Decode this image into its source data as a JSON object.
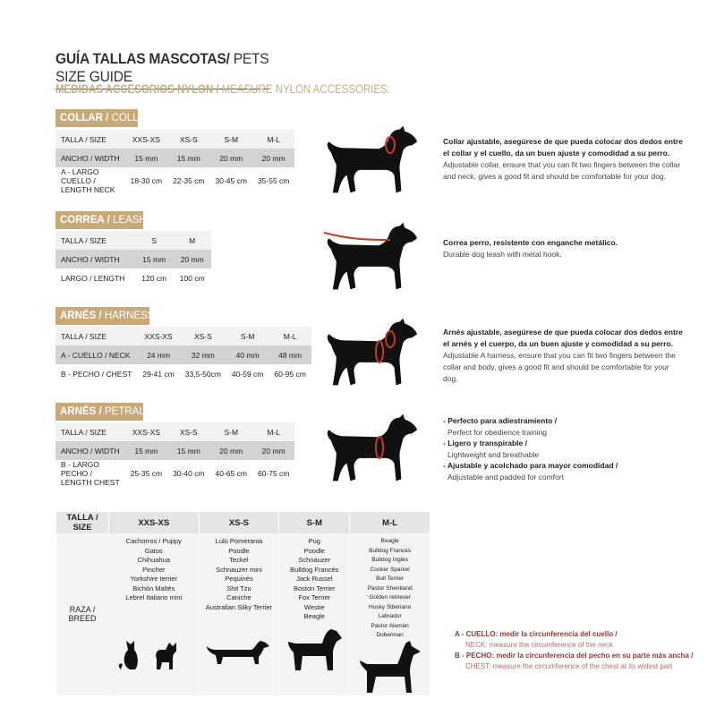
{
  "title": {
    "bold": "GUÍA TALLAS MASCOTAS/",
    "light": " PETS SIZE GUIDE"
  },
  "subtitle": {
    "bold": "MEDIDAS ACCESORIOS NYLON /",
    "light": " MEASURE NYLON ACCESSORIES:"
  },
  "collar": {
    "tag_bold": "COLLAR /",
    "tag_light": " COLLAR",
    "rows": [
      [
        "TALLA / SIZE",
        "XXS-XS",
        "XS-S",
        "S-M",
        "M-L"
      ],
      [
        "ANCHO / WIDTH",
        "15 mm",
        "15 mm",
        "20 mm",
        "20 mm"
      ],
      [
        "A - LARGO CUELLO / LENGTH NECK",
        "18-30 cm",
        "22-35 cm",
        "30-45 cm",
        "35-55 cm"
      ]
    ],
    "desc_es": "Collar ajustable, asegúrese de que pueda colocar dos dedos entre el collar y el cuello, da un buen ajuste y comodidad a su perro.",
    "desc_en": "Adjustable collar, ensure that you can fit two fingers between the collar and neck, gives a good fit and should be comfortable for your dog."
  },
  "leash": {
    "tag_bold": "CORREA /",
    "tag_light": " LEASH",
    "rows": [
      [
        "TALLA / SIZE",
        "S",
        "M"
      ],
      [
        "ANCHO / WIDTH",
        "15 mm",
        "20 mm"
      ],
      [
        "LARGO / LENGTH",
        "120 cm",
        "100 cm"
      ]
    ],
    "desc_es": "Correa perro, resistente con enganche metálico.",
    "desc_en": "Durable dog leash with metal hook."
  },
  "harness": {
    "tag_bold": "ARNÉS /",
    "tag_light": " HARNESS",
    "rows": [
      [
        "TALLA / SIZE",
        "XXS-XS",
        "XS-S",
        "S-M",
        "M-L"
      ],
      [
        "A - CUELLO / NECK",
        "24 mm",
        "32 mm",
        "40 mm",
        "48 mm"
      ],
      [
        "B - PECHO / CHEST",
        "29-41 cm",
        "33,5-50cm",
        "40-59 cm",
        "60-95 cm"
      ]
    ],
    "desc_es": "Arnés ajustable, asegúrese de que pueda colocar dos dedos entre el arnés y el cuerpo, da un buen ajuste y comodidad a su perro.",
    "desc_en": "Adjustable A harness, ensure that you can fit two fingers between the collar and body, gives a good fit and should be comfortable for your dog."
  },
  "petral": {
    "tag_bold": "ARNÉS /",
    "tag_light": " PETRAL",
    "rows": [
      [
        "TALLA / SIZE",
        "XXS-XS",
        "XS-S",
        "S-M",
        "M-L"
      ],
      [
        "ANCHO / WIDTH",
        "15 mm",
        "15 mm",
        "20 mm",
        "20 mm"
      ],
      [
        "B - LARGO PECHO / LENGTH CHEST",
        "25-35 cm",
        "30-40 cm",
        "40-65 cm",
        "60-75 cm"
      ]
    ],
    "bullets": [
      {
        "es": "- Perfecto para adiestramiento /",
        "en": "Perfect for obedience training"
      },
      {
        "es": "- Ligero y transpirable /",
        "en": "Lightweight and breathable"
      },
      {
        "es": "- Ajustable y acolchado para mayor comodidad /",
        "en": "Adjustable and padded for comfort"
      }
    ]
  },
  "breeds": {
    "header": [
      "TALLA /  SIZE",
      "XXS-XS",
      "XS-S",
      "S-M",
      "M-L"
    ],
    "row_label": "RAZA / BREED",
    "columns": [
      [
        "Cachorros / Puppy",
        "Gatos",
        "Chihuahua",
        "Pincher",
        "Yorkshire terrier",
        "Bichón Maltés",
        "Lebrel Italiano mini"
      ],
      [
        "Lulú Pomerania",
        "Poodle",
        "Teckel",
        "Schnauzer mini",
        "Pequinés",
        "Shit Tzu",
        "Caniche",
        "Australian Silky Terrier"
      ],
      [
        "Pug",
        "Poodle",
        "Schnauzer",
        "Bulldog Francés",
        "Jack Russel",
        "Boston Terrier",
        "Fox Terrier",
        "Westie",
        "Beagle"
      ],
      [
        "Beagle",
        "Bulldog Francés",
        "Bulldog Inglés",
        "Cocker Spaniel",
        "Bull Terrier",
        "Pastor Shentland",
        "Golden retriever",
        "Husky Siberiano",
        "Labrador",
        "Pastor Alemán",
        "Doberman"
      ]
    ]
  },
  "notes": [
    {
      "es": "A - CUELLO: medir la circunferencia del cuello /",
      "en": "NECK: measure the circumference of the neck"
    },
    {
      "es": "B - PECHO: medir la circunferencia del pecho en su parte más ancha /",
      "en": "CHEST: measure the circumference of the chest at its widest part"
    }
  ],
  "colors": {
    "gold": "#c8a977",
    "accent_red": "#c0392b",
    "note_red": "#8b3a34"
  }
}
